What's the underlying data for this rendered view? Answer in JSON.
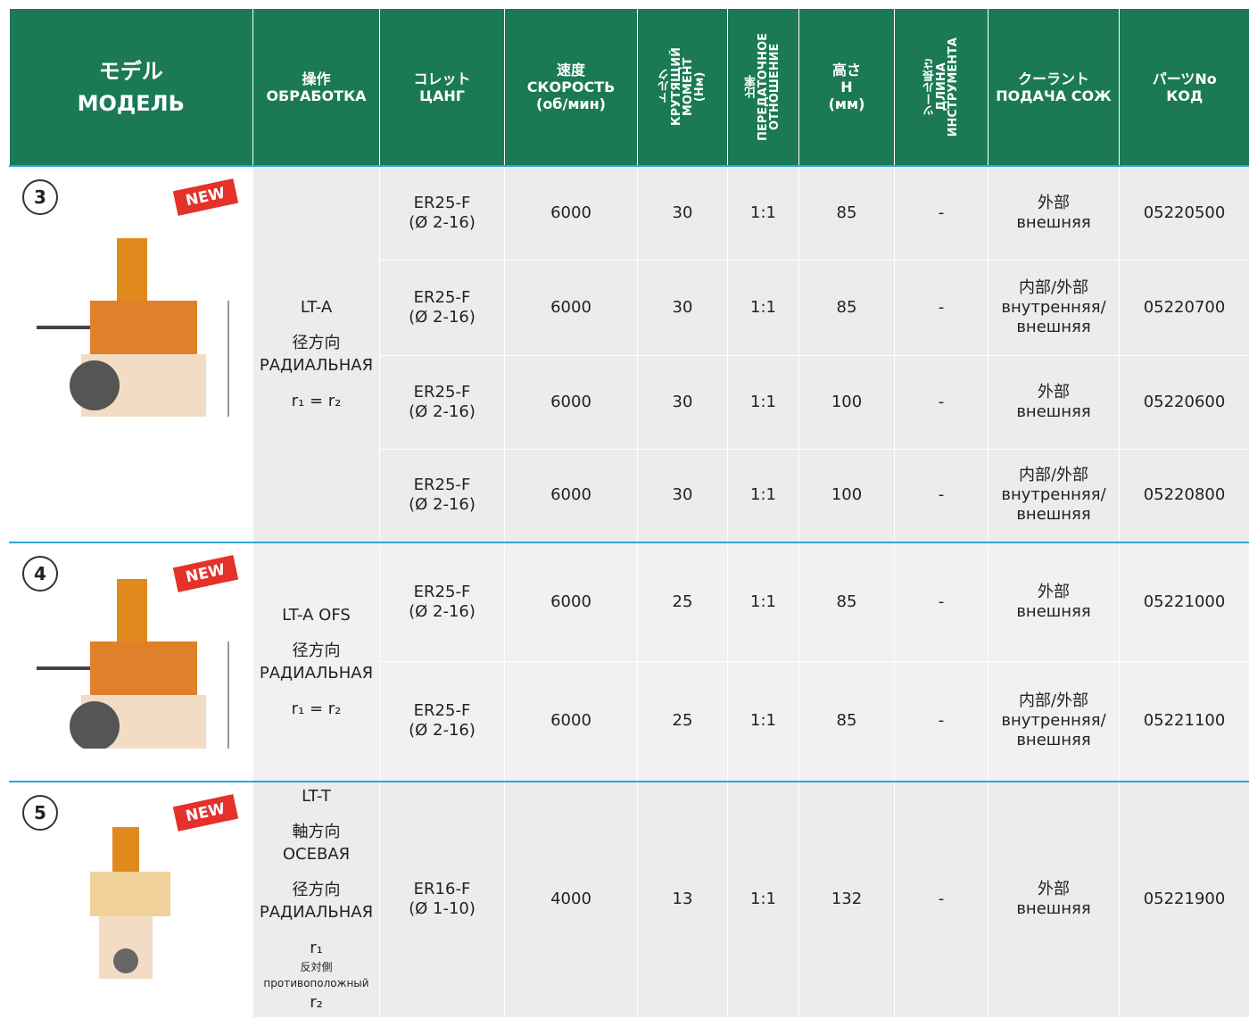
{
  "header": {
    "columns": [
      {
        "lines": [
          "モデル",
          "МОДЕЛЬ"
        ]
      },
      {
        "lines": [
          "操作",
          "ОБРАБОТКА"
        ]
      },
      {
        "lines": [
          "コレット",
          "ЦАНГ"
        ]
      },
      {
        "lines": [
          "速度",
          "СКОРОСТЬ",
          "(об/мин)"
        ]
      },
      {
        "lines": [
          "トルク",
          "КРУТЯЩИЙ",
          "МОМЕНТ",
          "(Нм)"
        ],
        "vertical": true
      },
      {
        "lines": [
          "比率",
          "ПЕРЕДАТОЧНОЕ",
          "ОТНОШЕНИЕ"
        ],
        "vertical": true
      },
      {
        "lines": [
          "高さ",
          "H",
          "(мм)"
        ]
      },
      {
        "lines": [
          "ツール長さ",
          "ДЛИНА",
          "ИНСТРУМЕНТА"
        ],
        "vertical": true
      },
      {
        "lines": [
          "クーラント",
          "ПОДАЧА СОЖ"
        ]
      },
      {
        "lines": [
          "パーツNo",
          "КОД"
        ]
      }
    ]
  },
  "groups": [
    {
      "number": "3",
      "badge": "NEW",
      "operation": [
        "LT-A",
        "径方向",
        "РАДИАЛЬНАЯ",
        "r₁ = r₂"
      ],
      "rows": [
        {
          "collet": [
            "ER25-F",
            "(Ø 2-16)"
          ],
          "speed": 6000,
          "torque": 30,
          "ratio": "1:1",
          "height": 85,
          "tool_length": "-",
          "coolant": [
            "外部",
            "внешняя"
          ],
          "code": "05220500"
        },
        {
          "collet": [
            "ER25-F",
            "(Ø 2-16)"
          ],
          "speed": 6000,
          "torque": 30,
          "ratio": "1:1",
          "height": 85,
          "tool_length": "-",
          "coolant": [
            "内部/外部",
            "внутренняя/",
            "внешняя"
          ],
          "code": "05220700"
        },
        {
          "collet": [
            "ER25-F",
            "(Ø 2-16)"
          ],
          "speed": 6000,
          "torque": 30,
          "ratio": "1:1",
          "height": 100,
          "tool_length": "-",
          "coolant": [
            "外部",
            "внешняя"
          ],
          "code": "05220600"
        },
        {
          "collet": [
            "ER25-F",
            "(Ø 2-16)"
          ],
          "speed": 6000,
          "torque": 30,
          "ratio": "1:1",
          "height": 100,
          "tool_length": "-",
          "coolant": [
            "内部/外部",
            "внутренняя/",
            "внешняя"
          ],
          "code": "05220800"
        }
      ]
    },
    {
      "number": "4",
      "badge": "NEW",
      "operation": [
        "LT-A OFS",
        "径方向",
        "РАДИАЛЬНАЯ",
        "r₁ = r₂"
      ],
      "rows": [
        {
          "collet": [
            "ER25-F",
            "(Ø 2-16)"
          ],
          "speed": 6000,
          "torque": 25,
          "ratio": "1:1",
          "height": 85,
          "tool_length": "-",
          "coolant": [
            "外部",
            "внешняя"
          ],
          "code": "05221000"
        },
        {
          "collet": [
            "ER25-F",
            "(Ø 2-16)"
          ],
          "speed": 6000,
          "torque": 25,
          "ratio": "1:1",
          "height": 85,
          "tool_length": "-",
          "coolant": [
            "内部/外部",
            "внутренняя/",
            "внешняя"
          ],
          "code": "05221100"
        }
      ]
    },
    {
      "number": "5",
      "badge": "NEW",
      "operation": [
        "LT-T",
        "軸方向",
        "ОСЕВАЯ",
        "径方向",
        "РАДИАЛЬНАЯ",
        "r₁",
        "反対側",
        "противоположный",
        "r₂"
      ],
      "rows": [
        {
          "collet": [
            "ER16-F",
            "(Ø 1-10)"
          ],
          "speed": 4000,
          "torque": 13,
          "ratio": "1:1",
          "height": 132,
          "tool_length": "-",
          "coolant": [
            "外部",
            "внешняя"
          ],
          "code": "05221900"
        }
      ]
    }
  ]
}
